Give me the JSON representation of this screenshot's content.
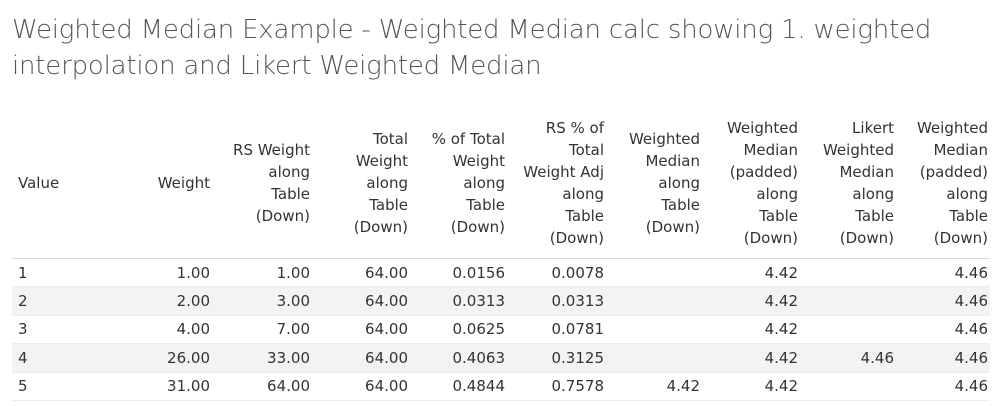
{
  "title": "Weighted Median Example - Weighted Median calc showing 1. weighted interpolation and Likert Weighted Median",
  "table": {
    "headers": [
      "Value",
      "Weight",
      "RS Weight\nalong\nTable\n(Down)",
      "Total\nWeight\nalong\nTable\n(Down)",
      "% of Total\nWeight\nalong\nTable\n(Down)",
      "RS % of\nTotal\nWeight Adj\nalong\nTable\n(Down)",
      "Weighted\nMedian\nalong\nTable\n(Down)",
      "Weighted\nMedian\n(padded)\nalong\nTable\n(Down)",
      "Likert\nWeighted\nMedian\nalong\nTable\n(Down)",
      "Weighted\nMedian\n(padded)\nalong\nTable\n(Down)"
    ],
    "rows": [
      [
        "1",
        "1.00",
        "1.00",
        "64.00",
        "0.0156",
        "0.0078",
        "",
        "4.42",
        "",
        "4.46"
      ],
      [
        "2",
        "2.00",
        "3.00",
        "64.00",
        "0.0313",
        "0.0313",
        "",
        "4.42",
        "",
        "4.46"
      ],
      [
        "3",
        "4.00",
        "7.00",
        "64.00",
        "0.0625",
        "0.0781",
        "",
        "4.42",
        "",
        "4.46"
      ],
      [
        "4",
        "26.00",
        "33.00",
        "64.00",
        "0.4063",
        "0.3125",
        "",
        "4.42",
        "4.46",
        "4.46"
      ],
      [
        "5",
        "31.00",
        "64.00",
        "64.00",
        "0.4844",
        "0.7578",
        "4.42",
        "4.42",
        "",
        "4.46"
      ]
    ]
  }
}
